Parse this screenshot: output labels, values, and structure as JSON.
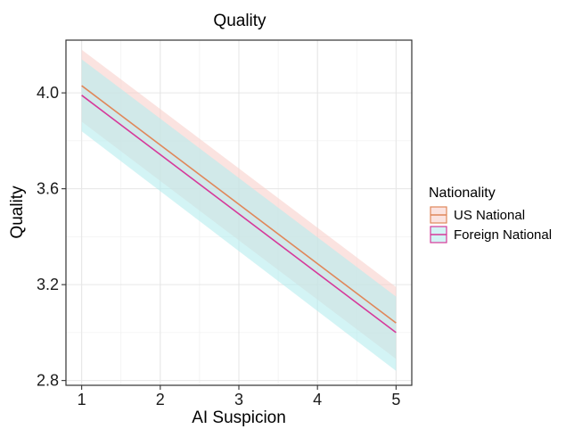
{
  "chart_data": {
    "type": "line",
    "title": "Quality",
    "xlabel": "AI Suspicion",
    "ylabel": "Quality",
    "xlim": [
      0.8,
      5.2
    ],
    "ylim": [
      2.78,
      4.22
    ],
    "x_ticks": [
      1,
      2,
      3,
      4,
      5
    ],
    "x_tick_labels": [
      "1",
      "2",
      "3",
      "4",
      "5"
    ],
    "y_ticks": [
      2.8,
      3.2,
      3.6,
      4.0
    ],
    "y_tick_labels": [
      "2.8",
      "3.2",
      "3.6",
      "4.0"
    ],
    "grid": true,
    "legend": {
      "title": "Nationality",
      "placement": "right"
    },
    "series": [
      {
        "name": "US National",
        "color": "#e0875a",
        "band_color": "#f9d0cc",
        "x": [
          1,
          5
        ],
        "y": [
          4.03,
          3.04
        ],
        "lower": [
          3.88,
          2.89
        ],
        "upper": [
          4.18,
          3.19
        ]
      },
      {
        "name": "Foreign National",
        "color": "#d6399a",
        "band_color": "#b5ecef",
        "x": [
          1,
          5
        ],
        "y": [
          3.99,
          3.0
        ],
        "lower": [
          3.84,
          2.84
        ],
        "upper": [
          4.14,
          3.15
        ]
      }
    ]
  }
}
